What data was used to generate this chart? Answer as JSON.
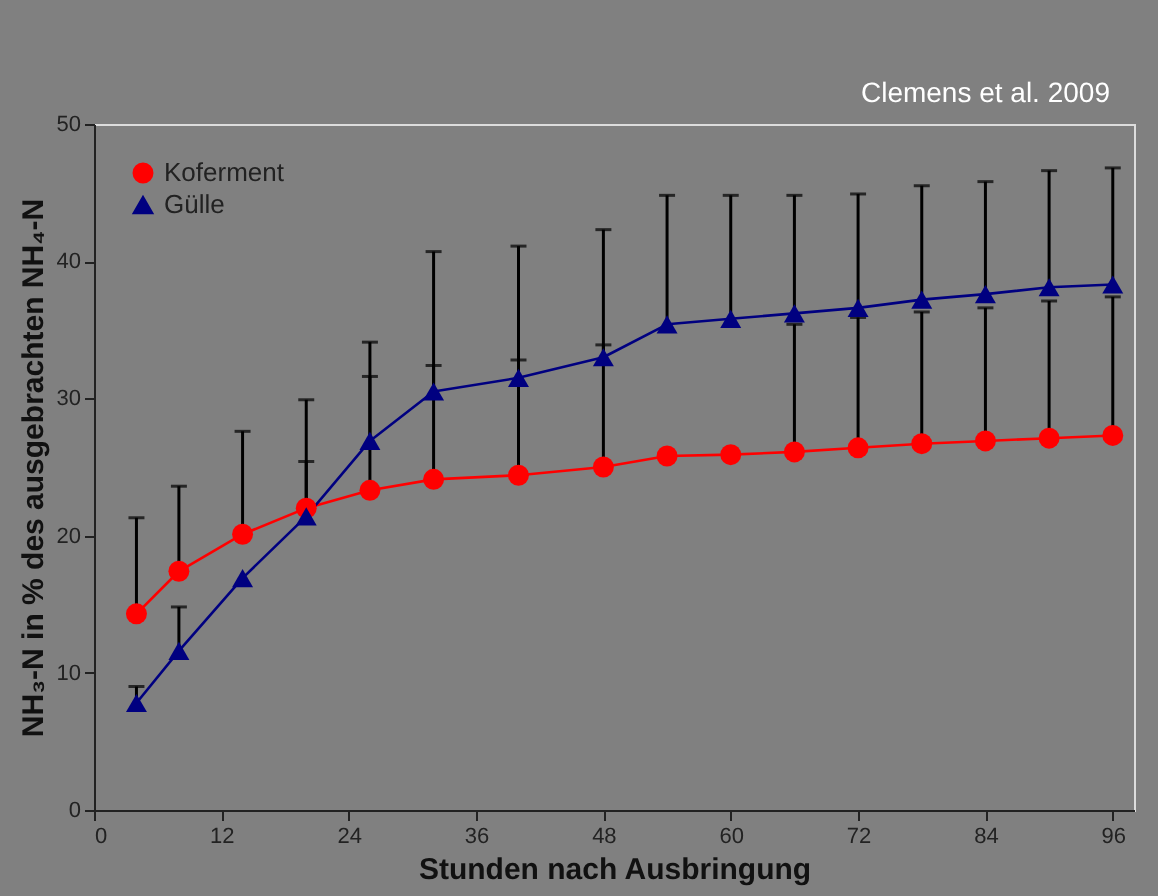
{
  "chart_data": {
    "type": "line",
    "xlabel": "Stunden nach Ausbringung",
    "ylabel": "NH₃-N in % des ausgebrachten NH₄-N",
    "annotations": [
      "Clemens et al. 2009"
    ],
    "x": [
      4,
      8,
      14,
      20,
      26,
      32,
      40,
      48,
      54,
      60,
      66,
      72,
      78,
      84,
      90,
      96
    ],
    "series": [
      {
        "name": "Koferment",
        "color": "#ff0000",
        "marker": "circle",
        "values": [
          14.3,
          17.4,
          20.1,
          22.0,
          23.3,
          24.1,
          24.4,
          25.0,
          25.8,
          25.9,
          26.1,
          26.4,
          26.7,
          26.9,
          27.1,
          27.3
        ],
        "errors": [
          [
            14.3,
            21.3
          ],
          [
            17.4,
            23.6
          ],
          [
            20.1,
            27.6
          ],
          [
            22.0,
            25.4
          ],
          [
            23.3,
            31.6
          ],
          [
            24.1,
            32.4
          ],
          [
            24.4,
            32.8
          ],
          [
            25.0,
            33.9
          ],
          null,
          null,
          [
            26.1,
            35.4
          ],
          [
            26.4,
            35.9
          ],
          [
            26.7,
            36.3
          ],
          [
            26.9,
            36.6
          ],
          [
            27.1,
            37.1
          ],
          [
            27.3,
            37.4
          ]
        ]
      },
      {
        "name": "Gülle",
        "color": "#000080",
        "marker": "triangle",
        "values": [
          7.8,
          11.6,
          16.9,
          21.4,
          26.9,
          30.5,
          31.5,
          33.0,
          35.4,
          35.8,
          36.2,
          36.6,
          37.2,
          37.6,
          38.1,
          38.3
        ],
        "errors": [
          [
            7.8,
            9.0
          ],
          [
            11.6,
            14.8
          ],
          null,
          [
            21.4,
            29.9
          ],
          [
            26.9,
            34.1
          ],
          [
            30.5,
            40.7
          ],
          [
            31.5,
            41.1
          ],
          [
            33.0,
            42.3
          ],
          [
            35.4,
            44.8
          ],
          [
            35.8,
            44.8
          ],
          [
            36.2,
            44.8
          ],
          [
            36.6,
            44.9
          ],
          [
            37.2,
            45.5
          ],
          [
            37.6,
            45.8
          ],
          [
            38.1,
            46.6
          ],
          [
            38.3,
            46.8
          ]
        ]
      }
    ],
    "xlim": [
      0,
      98
    ],
    "xticks": [
      0,
      12,
      24,
      36,
      48,
      60,
      72,
      84,
      96
    ],
    "ylim": [
      0,
      50
    ],
    "yticks": [
      0,
      10,
      20,
      30,
      40,
      50
    ],
    "grid": false,
    "legend": "top left",
    "line_style": "solid"
  }
}
